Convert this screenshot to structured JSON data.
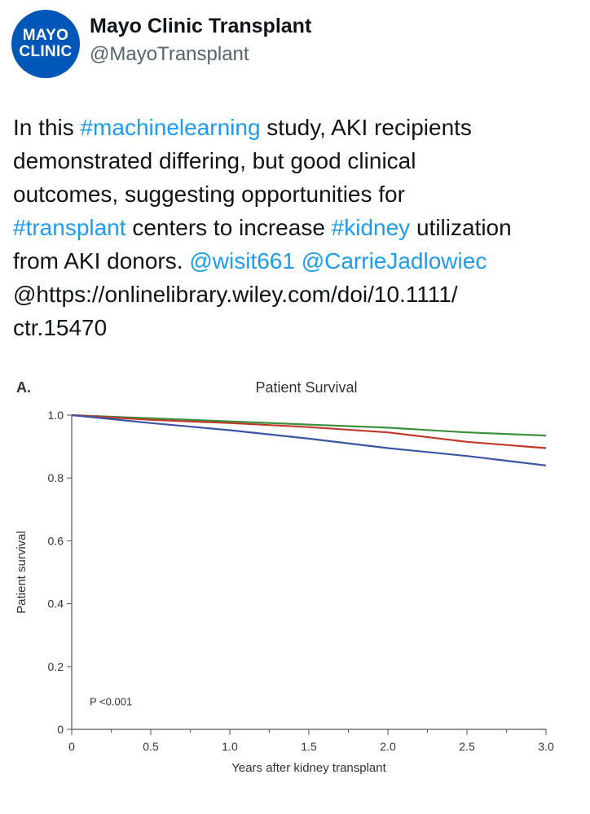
{
  "author": {
    "avatar_lines": [
      "MAYO",
      "CLINIC"
    ],
    "display_name": "Mayo Clinic Transplant",
    "handle": "@MayoTransplant",
    "avatar_color": "#0057b8"
  },
  "tweet": {
    "lines": [
      [
        {
          "t": "In this ",
          "link": false
        },
        {
          "t": "#machinelearning",
          "link": true
        },
        {
          "t": " study, AKI recipients",
          "link": false
        }
      ],
      [
        {
          "t": "demonstrated differing, but good clinical",
          "link": false
        }
      ],
      [
        {
          "t": "outcomes, suggesting opportunities for",
          "link": false
        }
      ],
      [
        {
          "t": "#transplant",
          "link": true
        },
        {
          "t": " centers to increase ",
          "link": false
        },
        {
          "t": "#kidney",
          "link": true
        },
        {
          "t": " utilization",
          "link": false
        }
      ],
      [
        {
          "t": "from AKI donors. ",
          "link": false
        },
        {
          "t": "@wisit661",
          "link": true
        },
        {
          "t": " ",
          "link": false
        },
        {
          "t": "@CarrieJadlowiec",
          "link": true
        }
      ],
      [
        {
          "t": "@https://onlinelibrary.wiley.com/doi/10.1111/",
          "link": false
        }
      ],
      [
        {
          "t": "ctr.15470",
          "link": false
        }
      ]
    ],
    "link_color": "#1d9bf0"
  },
  "chart_data": {
    "type": "line",
    "panel_label": "A.",
    "title": "Patient Survival",
    "xlabel": "Years after kidney transplant",
    "ylabel": "Patient survival",
    "xlim": [
      0,
      3.0
    ],
    "ylim": [
      0,
      1.0
    ],
    "x_ticks": [
      "0",
      "0.5",
      "1.0",
      "1.5",
      "2.0",
      "2.5",
      "3.0"
    ],
    "y_ticks": [
      "0",
      "0.2",
      "0.4",
      "0.6",
      "0.8",
      "1.0"
    ],
    "annotation": "P <0.001",
    "series": [
      {
        "color": "#3b8f3b",
        "x": [
          0,
          0.5,
          1.0,
          1.5,
          2.0,
          2.5,
          3.0
        ],
        "y": [
          1.0,
          0.99,
          0.98,
          0.97,
          0.96,
          0.945,
          0.935
        ]
      },
      {
        "color": "#c0392b",
        "x": [
          0,
          0.5,
          1.0,
          1.5,
          2.0,
          2.5,
          3.0
        ],
        "y": [
          1.0,
          0.985,
          0.975,
          0.962,
          0.945,
          0.915,
          0.895
        ]
      },
      {
        "color": "#3a55a4",
        "x": [
          0,
          0.5,
          1.0,
          1.5,
          2.0,
          2.5,
          3.0
        ],
        "y": [
          1.0,
          0.975,
          0.952,
          0.925,
          0.895,
          0.87,
          0.84
        ]
      }
    ]
  }
}
